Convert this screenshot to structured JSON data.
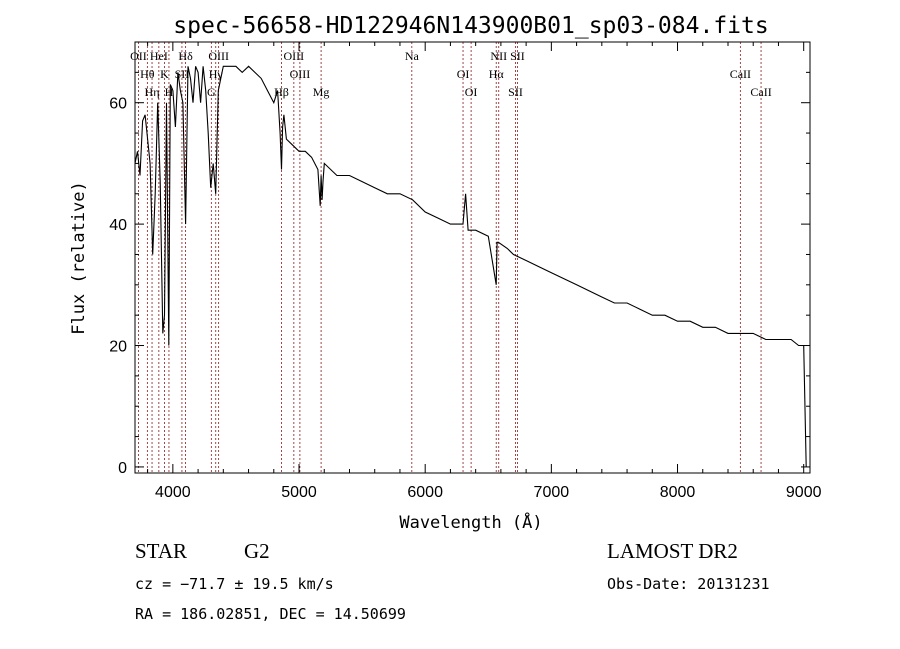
{
  "chart_data": {
    "type": "line",
    "title": "spec-56658-HD122946N143900B01_sp03-084.fits",
    "xlabel": "Wavelength (Å)",
    "ylabel": "Flux (relative)",
    "xlim": [
      3700,
      9050
    ],
    "ylim": [
      -1,
      70
    ],
    "xticks": [
      4000,
      5000,
      6000,
      7000,
      8000,
      9000
    ],
    "yticks": [
      0,
      20,
      40,
      60
    ],
    "grid": false,
    "series": [
      {
        "x": [
          3700,
          3720,
          3740,
          3760,
          3780,
          3800,
          3820,
          3840,
          3860,
          3880,
          3900,
          3920,
          3934,
          3950,
          3968,
          3980,
          4000,
          4020,
          4040,
          4060,
          4080,
          4101,
          4120,
          4140,
          4160,
          4180,
          4200,
          4220,
          4240,
          4260,
          4280,
          4300,
          4320,
          4340,
          4360,
          4380,
          4400,
          4450,
          4500,
          4550,
          4600,
          4650,
          4700,
          4750,
          4800,
          4830,
          4850,
          4861,
          4870,
          4880,
          4900,
          4950,
          5000,
          5050,
          5100,
          5150,
          5168,
          5175,
          5183,
          5190,
          5200,
          5300,
          5400,
          5500,
          5600,
          5700,
          5800,
          5900,
          6000,
          6100,
          6200,
          6300,
          6320,
          6340,
          6400,
          6500,
          6563,
          6570,
          6580,
          6650,
          6700,
          6800,
          6900,
          7000,
          7100,
          7200,
          7300,
          7400,
          7500,
          7600,
          7700,
          7800,
          7900,
          8000,
          8100,
          8200,
          8300,
          8400,
          8500,
          8600,
          8700,
          8800,
          8900,
          8960,
          9000,
          9020
        ],
        "values": [
          50,
          52,
          48,
          57,
          58,
          54,
          50,
          35,
          45,
          60,
          47,
          22,
          25,
          60,
          20,
          63,
          62,
          56,
          65,
          62,
          60,
          40,
          66,
          64,
          60,
          66,
          65,
          60,
          66,
          62,
          55,
          46,
          50,
          45,
          62,
          64,
          66,
          66,
          66,
          65,
          66,
          65,
          64,
          62,
          60,
          62,
          55,
          49,
          56,
          58,
          54,
          53,
          52,
          52,
          51,
          49,
          43,
          48,
          44,
          47,
          50,
          48,
          48,
          47,
          46,
          45,
          45,
          44,
          42,
          41,
          40,
          40,
          45,
          39,
          39,
          38,
          30,
          37,
          37,
          36,
          35,
          34,
          33,
          32,
          31,
          30,
          29,
          28,
          27,
          27,
          26,
          25,
          25,
          24,
          24,
          23,
          23,
          22,
          22,
          22,
          21,
          21,
          21,
          20,
          20,
          0
        ]
      }
    ],
    "emission_lines": [
      {
        "label": "OII",
        "x": 3727
      },
      {
        "label": "Hθ",
        "x": 3798
      },
      {
        "label": "Hη",
        "x": 3835
      },
      {
        "label": "HeI",
        "x": 3889
      },
      {
        "label": "K",
        "x": 3934
      },
      {
        "label": "H",
        "x": 3969
      },
      {
        "label": "Hδ",
        "x": 4101
      },
      {
        "label": "SII",
        "x": 4072
      },
      {
        "label": "G",
        "x": 4305
      },
      {
        "label": "OIII",
        "x": 4363
      },
      {
        "label": "Hγ",
        "x": 4340
      },
      {
        "label": "Hβ",
        "x": 4861
      },
      {
        "label": "OIII",
        "x": 4959
      },
      {
        "label": "OIII",
        "x": 5007
      },
      {
        "label": "Mg",
        "x": 5175
      },
      {
        "label": "Na",
        "x": 5894
      },
      {
        "label": "OI",
        "x": 6300
      },
      {
        "label": "OI",
        "x": 6364
      },
      {
        "label": "NII",
        "x": 6583
      },
      {
        "label": "Hα",
        "x": 6563
      },
      {
        "label": "SII",
        "x": 6716
      },
      {
        "label": "SII",
        "x": 6731
      },
      {
        "label": "CaII",
        "x": 8498
      },
      {
        "label": "CaII",
        "x": 8662
      }
    ]
  },
  "info": {
    "object_class": "STAR",
    "subclass": "G2",
    "survey": "LAMOST DR2",
    "redshift": "cz = −71.7 ± 19.5 km/s",
    "obs_date": "Obs-Date: 20131231",
    "coords": "RA = 186.02851, DEC =  14.50699"
  }
}
